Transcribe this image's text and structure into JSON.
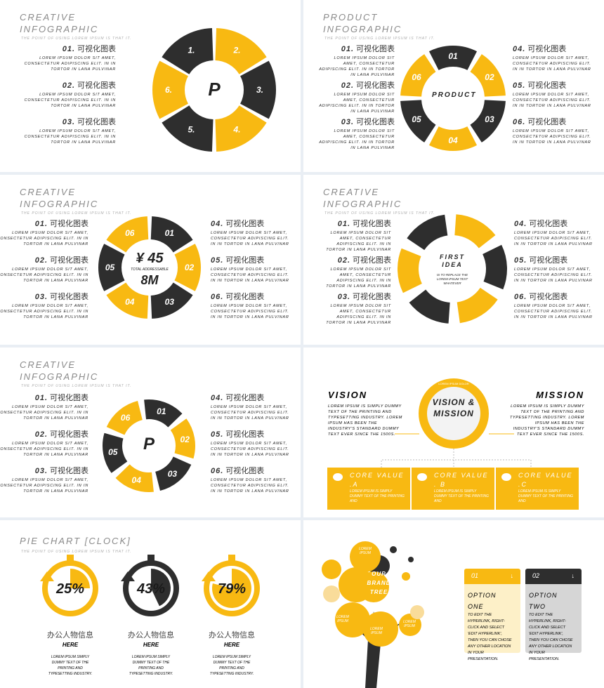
{
  "colors": {
    "accent": "#f8b912",
    "dark": "#2e2e2e",
    "background": "#e9eef4",
    "pale": "#fdf0c8",
    "grey": "#d6d6d6"
  },
  "common": {
    "lorem": "LOREM IPSUM DOLOR SIT AMET, CONSECTETUR ADIPISCING ELIT. IN IN TORTOR IN LANA PULVINAR",
    "subtitle": "THE POINT OF USING LOREM IPSUM IS THAT IT.",
    "item_label": "可视化图表"
  },
  "slide1": {
    "title": [
      "CREATIVE",
      "INFOGRAPHIC"
    ],
    "items": [
      "01.",
      "02.",
      "03."
    ],
    "segments": [
      "1.",
      "2.",
      "3.",
      "4.",
      "5.",
      "6."
    ],
    "center": "P"
  },
  "slide2": {
    "title": [
      "PRODUCT",
      "INFOGRAPHIC"
    ],
    "items_left": [
      "01.",
      "02.",
      "03."
    ],
    "items_right": [
      "04.",
      "05.",
      "06."
    ],
    "segments": [
      "01",
      "02",
      "03",
      "04",
      "05",
      "06"
    ],
    "segment_icons": [
      "user-icon",
      "camera-icon",
      "mail-icon",
      "star-icon",
      "chat-icon",
      "share-icon"
    ],
    "center": "PRODUCT"
  },
  "slide3": {
    "title": [
      "CREATIVE",
      "INFOGRAPHIC"
    ],
    "items_left": [
      "01.",
      "02.",
      "03."
    ],
    "items_right": [
      "04.",
      "05.",
      "06."
    ],
    "segments": [
      "01",
      "02",
      "03",
      "04",
      "05",
      "06"
    ],
    "segment_icons": [
      "chat-icon",
      "share-icon",
      "star-icon",
      "user-icon",
      "mail-icon",
      "camera-icon"
    ],
    "center_value": "¥ 45",
    "center_caption": "TOTAL ADDRESSABLE",
    "center_unit": "8M"
  },
  "slide4": {
    "title": [
      "CREATIVE",
      "INFOGRAPHIC"
    ],
    "items_left": [
      "01.",
      "02.",
      "03."
    ],
    "items_right": [
      "04.",
      "05.",
      "06."
    ],
    "center_title": "FIRST IDEA",
    "center_text": "IS TO REPLACE THE LOREM IPSUM TEXT WHATEVER"
  },
  "slide5": {
    "title": [
      "CREATIVE",
      "INFOGRAPHIC"
    ],
    "items_left": [
      "01.",
      "02.",
      "03."
    ],
    "items_right": [
      "04.",
      "05.",
      "06."
    ],
    "segments": [
      "01",
      "02",
      "03",
      "04",
      "05",
      "06"
    ],
    "segment_icons": [
      "home-icon",
      "camera-icon",
      "mail-icon",
      "search-icon",
      "user-icon",
      "chat-icon"
    ],
    "center": "P"
  },
  "slide6": {
    "vision_title": "VISION",
    "mission_title": "MISSION",
    "text": "LOREM IPSUM IS SIMPLY DUMMY TEXT OF THE PRINTING AND TYPESETTING INDUSTRY. LOREM IPSUM HAS BEEN THE INDUSTRY'S STANDARD DUMMY TEXT EVER SINCE THE 1500S.",
    "center": "VISION & MISSION",
    "ring_text": "LOREM IPSUM DOLOR",
    "values": [
      {
        "title": "CORE VALUE .A",
        "icon": "chat-bubble-icon"
      },
      {
        "title": "CORE VALUE . B",
        "icon": "gears-icon"
      },
      {
        "title": "CORE VALUE .C",
        "icon": "magic-wand-icon"
      }
    ],
    "value_text": "LOREM IPSUM IS SIMPLY DUMMY TEXT OF THE PRINTING AND"
  },
  "slide7": {
    "title": "PIE CHART [CLOCK]",
    "clocks": [
      {
        "value": "25%",
        "fraction": 0.25,
        "color": "accent"
      },
      {
        "value": "43%",
        "fraction": 0.43,
        "color": "dark"
      },
      {
        "value": "79%",
        "fraction": 0.79,
        "color": "accent"
      }
    ],
    "label": "办公人物信息",
    "label_sub": "HERE",
    "text": "LOREM IPSUM SIMPLY DUMMY TEXT OF THE PRINTING AND TYPESETTING INDUSTRY."
  },
  "slide8": {
    "tree_title": "OUR BRAND TREE",
    "bubble": "LOREM IPSUM",
    "options": [
      {
        "num": "01",
        "title": "OPTION ONE"
      },
      {
        "num": "02",
        "title": "OPTION TWO"
      }
    ],
    "option_text": "TO EDIT THE HYPERLINK, RIGHT-CLICK AND SELECT 'EDIT HYPERLINK', THEN YOU CAN CHOSE ANY OTHER LOCATION IN YOUR PRESENTATION."
  }
}
